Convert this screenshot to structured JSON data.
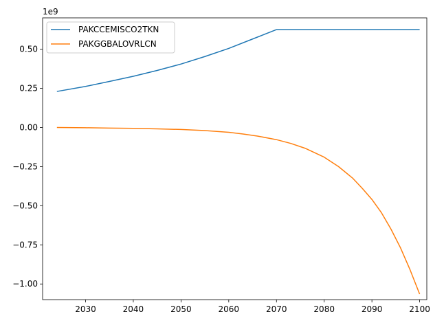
{
  "chart_data": {
    "type": "line",
    "title": "",
    "xlabel": "",
    "ylabel": "",
    "offset_label": "1e9",
    "xlim": [
      2021,
      2101.5
    ],
    "ylim": [
      -1.1,
      0.7
    ],
    "y_scale_factor": 1000000000,
    "xticks": [
      2030,
      2040,
      2050,
      2060,
      2070,
      2080,
      2090,
      2100
    ],
    "xtick_labels": [
      "2030",
      "2040",
      "2050",
      "2060",
      "2070",
      "2080",
      "2090",
      "2100"
    ],
    "yticks": [
      0.5,
      0.25,
      0.0,
      -0.25,
      -0.5,
      -0.75,
      -1.0
    ],
    "ytick_labels": [
      "0.50",
      "0.25",
      "0.00",
      "−0.25",
      "−0.50",
      "−0.75",
      "−1.00"
    ],
    "grid": false,
    "legend_position": "top-left",
    "series": [
      {
        "name": "PAKCCEMISCO2TKN",
        "color": "#1f77b4",
        "x": [
          2024,
          2030,
          2035,
          2040,
          2045,
          2050,
          2055,
          2060,
          2065,
          2070,
          2075,
          2080,
          2085,
          2090,
          2095,
          2100
        ],
        "y": [
          0.23,
          0.262,
          0.294,
          0.327,
          0.364,
          0.405,
          0.453,
          0.505,
          0.565,
          0.625,
          0.625,
          0.625,
          0.625,
          0.625,
          0.625,
          0.625
        ]
      },
      {
        "name": "PAKGGBALOVRLCN",
        "color": "#ff7f0e",
        "x": [
          2024,
          2030,
          2035,
          2040,
          2045,
          2050,
          2055,
          2060,
          2063,
          2066,
          2070,
          2073,
          2076,
          2080,
          2083,
          2086,
          2088,
          2090,
          2092,
          2094,
          2096,
          2098,
          2100
        ],
        "y": [
          0.0,
          -0.002,
          -0.004,
          -0.006,
          -0.009,
          -0.013,
          -0.02,
          -0.031,
          -0.042,
          -0.055,
          -0.078,
          -0.102,
          -0.133,
          -0.19,
          -0.25,
          -0.325,
          -0.39,
          -0.46,
          -0.545,
          -0.65,
          -0.77,
          -0.91,
          -1.065
        ]
      }
    ]
  }
}
